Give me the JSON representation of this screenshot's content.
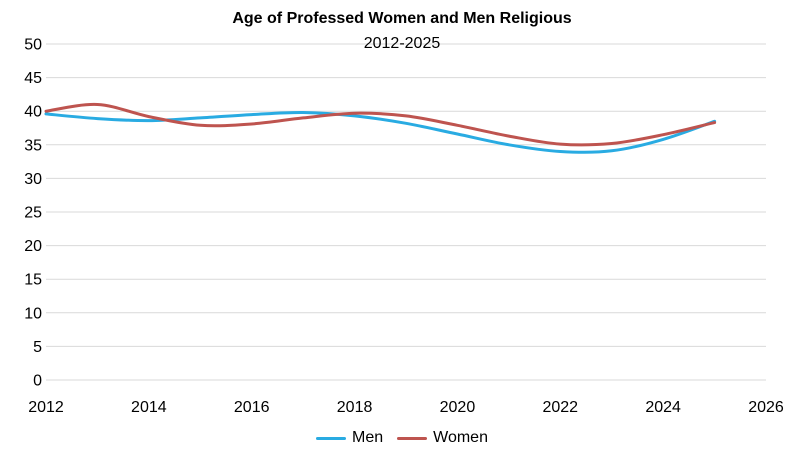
{
  "title": "Age of Professed Women and Men Religious",
  "subtitle": "2012-2025",
  "colors": {
    "men_line": "#29ABE2",
    "women_line": "#BE544F",
    "gridline": "#D9D9D9",
    "text": "#000000",
    "background": "#FFFFFF"
  },
  "chart_data": {
    "type": "line",
    "title": "Age of Professed Women and Men Religious",
    "subtitle": "2012-2025",
    "x": [
      2012,
      2013,
      2014,
      2015,
      2016,
      2017,
      2018,
      2019,
      2020,
      2021,
      2022,
      2023,
      2024,
      2025
    ],
    "series": [
      {
        "name": "Men",
        "color": "#29ABE2",
        "values": [
          39.6,
          38.9,
          38.6,
          39.0,
          39.5,
          39.8,
          39.3,
          38.2,
          36.6,
          35.0,
          34.0,
          34.1,
          35.8,
          38.5
        ]
      },
      {
        "name": "Women",
        "color": "#BE544F",
        "values": [
          40.0,
          41.0,
          39.2,
          37.9,
          38.1,
          39.0,
          39.7,
          39.3,
          37.9,
          36.3,
          35.1,
          35.2,
          36.5,
          38.3
        ]
      }
    ],
    "xticks": [
      2012,
      2014,
      2016,
      2018,
      2020,
      2022,
      2024,
      2026
    ],
    "yticks": [
      0,
      5,
      10,
      15,
      20,
      25,
      30,
      35,
      40,
      45,
      50
    ],
    "xlim": [
      2012,
      2026
    ],
    "ylim": [
      0,
      50
    ],
    "grid": "horizontal-only",
    "smooth": true,
    "legend_position": "bottom"
  },
  "legend": {
    "items": [
      {
        "label": "Men"
      },
      {
        "label": "Women"
      }
    ]
  }
}
